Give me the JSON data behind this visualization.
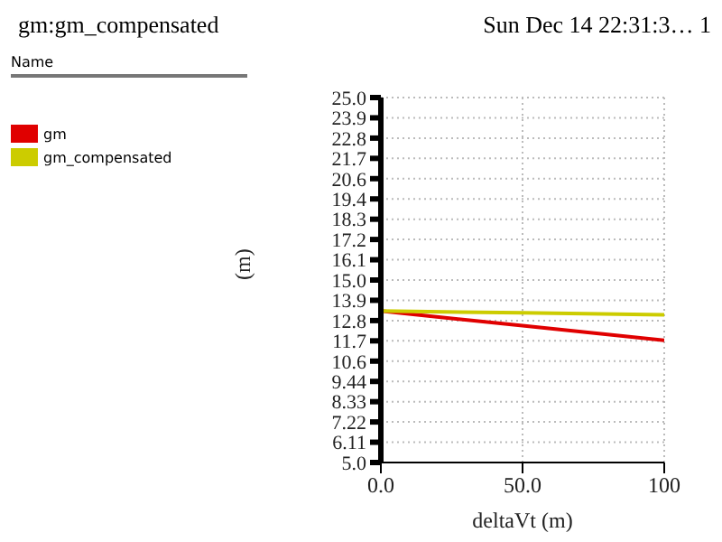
{
  "chart_data": {
    "type": "line",
    "title": "gm:gm_compensated",
    "annotations": [
      "Sun Dec 14 22:31:3… 1"
    ],
    "legend_title": "Name",
    "legend": "left",
    "xlabel": "deltaVt (m)",
    "ylabel": "(m)",
    "grid": true,
    "x": [
      0,
      50,
      100
    ],
    "xlim": [
      0,
      100
    ],
    "xticks": [
      {
        "value": 0,
        "label": "0.0"
      },
      {
        "value": 50,
        "label": "50.0"
      },
      100
    ],
    "ylim": [
      5,
      25
    ],
    "yticks": [
      {
        "value": 5,
        "label": "5.0"
      },
      {
        "value": 6.111,
        "label": "6.11"
      },
      {
        "value": 7.222,
        "label": "7.22"
      },
      {
        "value": 8.333,
        "label": "8.33"
      },
      {
        "value": 9.444,
        "label": "9.44"
      },
      {
        "value": 10.556,
        "label": "10.6"
      },
      {
        "value": 11.667,
        "label": "11.7"
      },
      {
        "value": 12.778,
        "label": "12.8"
      },
      {
        "value": 13.889,
        "label": "13.9"
      },
      {
        "value": 15,
        "label": "15.0"
      },
      {
        "value": 16.111,
        "label": "16.1"
      },
      {
        "value": 17.222,
        "label": "17.2"
      },
      {
        "value": 18.333,
        "label": "18.3"
      },
      {
        "value": 19.444,
        "label": "19.4"
      },
      {
        "value": 20.556,
        "label": "20.6"
      },
      {
        "value": 21.667,
        "label": "21.7"
      },
      {
        "value": 22.778,
        "label": "22.8"
      },
      {
        "value": 23.889,
        "label": "23.9"
      },
      {
        "value": 25,
        "label": "25.0"
      }
    ],
    "series": [
      {
        "name": "gm",
        "color": "#e00000",
        "values": [
          13.3,
          12.5,
          11.7
        ]
      },
      {
        "name": "gm_compensated",
        "color": "#cccc00",
        "values": [
          13.3,
          13.2,
          13.1
        ]
      }
    ],
    "marker": "none",
    "line_style": "solid"
  }
}
